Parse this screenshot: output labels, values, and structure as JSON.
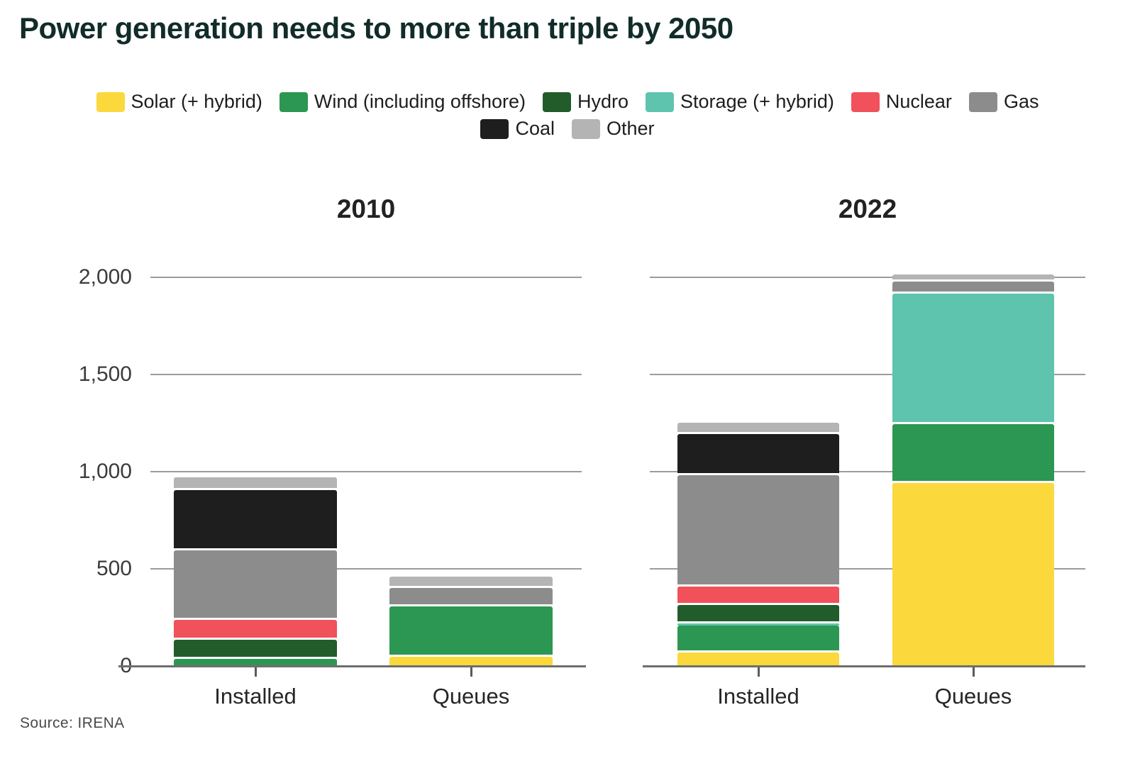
{
  "page": {
    "title": "Power generation needs to more than triple by 2050",
    "source": "Source: IRENA"
  },
  "colors": {
    "solar": "#FBD83C",
    "wind": "#2C9752",
    "hydro": "#235C2B",
    "storage": "#5EC4AE",
    "nuclear": "#F1515A",
    "gas": "#8C8C8C",
    "coal": "#1E1E1E",
    "other": "#B4B4B4",
    "title_text": "#112C29",
    "gridline": "#9C9C9C",
    "axis": "#6E6E6E"
  },
  "legend": {
    "rows": [
      [
        {
          "key": "solar",
          "label": "Solar (+ hybrid)"
        },
        {
          "key": "wind",
          "label": "Wind (including offshore)"
        },
        {
          "key": "hydro",
          "label": "Hydro"
        },
        {
          "key": "storage",
          "label": "Storage (+ hybrid)"
        },
        {
          "key": "nuclear",
          "label": "Nuclear"
        },
        {
          "key": "gas",
          "label": "Gas"
        }
      ],
      [
        {
          "key": "coal",
          "label": "Coal"
        },
        {
          "key": "other",
          "label": "Other"
        }
      ]
    ]
  },
  "chart_data": {
    "type": "bar",
    "stacked": true,
    "ylim": [
      0,
      2000
    ],
    "grid": true,
    "legend_position": "top-center",
    "yticks": [
      {
        "value": 0,
        "label": "0"
      },
      {
        "value": 500,
        "label": "500"
      },
      {
        "value": 1000,
        "label": "1,000"
      },
      {
        "value": 1500,
        "label": "1,500"
      },
      {
        "value": 2000,
        "label": "2,000"
      }
    ],
    "stack_order_bottom_to_top": [
      "solar",
      "wind",
      "storage",
      "hydro",
      "nuclear",
      "gas",
      "coal",
      "other"
    ],
    "groups": [
      {
        "title": "2010",
        "show_y_labels": true,
        "bars": [
          {
            "category": "Installed",
            "values": {
              "solar": 0,
              "wind": 40,
              "storage": 0,
              "hydro": 100,
              "nuclear": 100,
              "gas": 360,
              "coal": 310,
              "other": 65
            }
          },
          {
            "category": "Queues",
            "values": {
              "solar": 50,
              "wind": 260,
              "storage": 0,
              "hydro": 0,
              "nuclear": 0,
              "gas": 95,
              "coal": 0,
              "other": 60
            }
          }
        ]
      },
      {
        "title": "2022",
        "show_y_labels": false,
        "bars": [
          {
            "category": "Installed",
            "values": {
              "solar": 73,
              "wind": 138,
              "storage": 10,
              "hydro": 95,
              "nuclear": 95,
              "gas": 573,
              "coal": 213,
              "other": 58
            }
          },
          {
            "category": "Queues",
            "values": {
              "solar": 945,
              "wind": 305,
              "storage": 670,
              "hydro": 0,
              "nuclear": 0,
              "gas": 60,
              "coal": 0,
              "other": 40
            }
          }
        ]
      }
    ]
  }
}
